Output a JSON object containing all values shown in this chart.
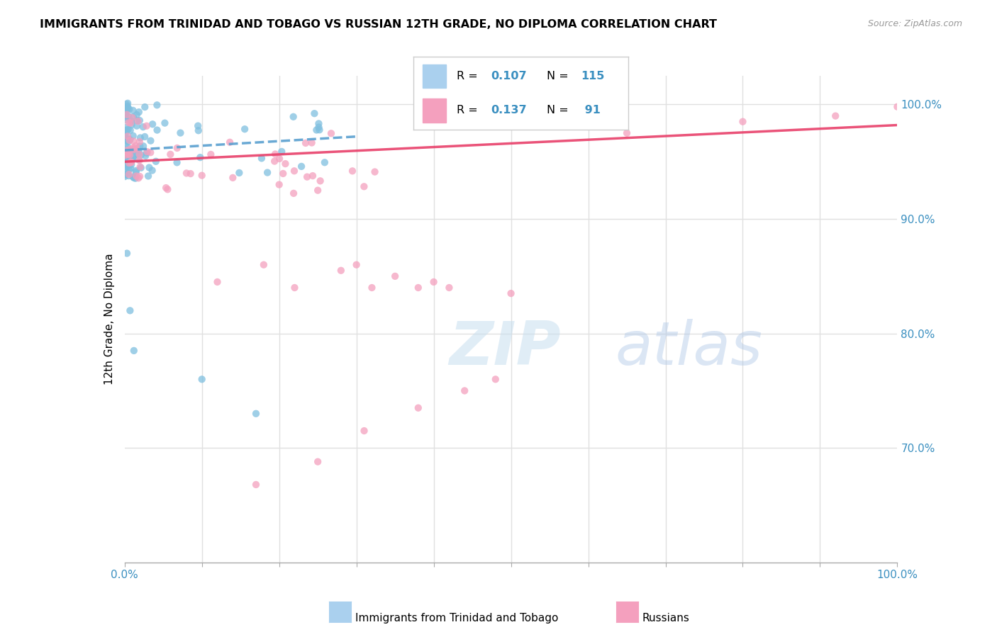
{
  "title": "IMMIGRANTS FROM TRINIDAD AND TOBAGO VS RUSSIAN 12TH GRADE, NO DIPLOMA CORRELATION CHART",
  "source": "Source: ZipAtlas.com",
  "ylabel": "12th Grade, No Diploma",
  "xlim": [
    0.0,
    1.0
  ],
  "ylim": [
    0.6,
    1.025
  ],
  "legend_r1": "0.107",
  "legend_n1": "115",
  "legend_r2": "0.137",
  "legend_n2": " 91",
  "color_blue": "#7fbfdf",
  "color_pink": "#f4a0be",
  "color_blue_line": "#5aa0d0",
  "color_pink_line": "#e8406a",
  "color_blue_text": "#3a8fc0",
  "grid_color": "#e0e0e0",
  "watermark_zip": "ZIP",
  "watermark_atlas": "atlas",
  "ytick_positions": [
    0.7,
    0.8,
    0.9,
    1.0
  ],
  "yticklabels": [
    "70.0%",
    "80.0%",
    "90.0%",
    "100.0%"
  ]
}
